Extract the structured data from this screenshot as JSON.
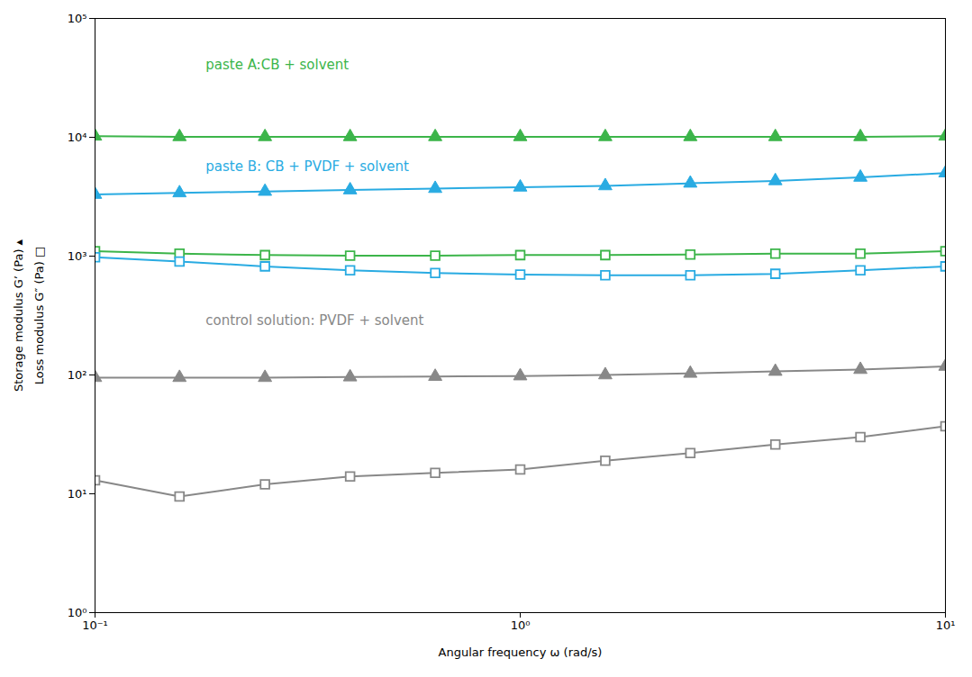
{
  "chart_data": {
    "type": "line",
    "xlabel": "Angular frequency ω (rad/s)",
    "ylabel": [
      "Storage modulus G’ (Pa) ▴",
      "Loss modulus G″ (Pa) □"
    ],
    "log": true,
    "grid": false,
    "xlim": [
      0.1,
      10
    ],
    "ylim": [
      1,
      100000
    ],
    "xticks": [
      {
        "value": 0.1,
        "label": "10⁻¹"
      },
      {
        "value": 1,
        "label": "10⁰"
      },
      {
        "value": 10,
        "label": "10¹"
      }
    ],
    "yticks": [
      {
        "value": 1,
        "label": "10⁰"
      },
      {
        "value": 10,
        "label": "10¹"
      },
      {
        "value": 100,
        "label": "10²"
      },
      {
        "value": 1000,
        "label": "10³"
      },
      {
        "value": 10000,
        "label": "10⁴"
      },
      {
        "value": 100000,
        "label": "10⁵"
      }
    ],
    "x": [
      0.1,
      0.158,
      0.251,
      0.398,
      0.631,
      1.0,
      1.585,
      2.512,
      3.981,
      6.31,
      10.0
    ],
    "series": [
      {
        "color": "#3cb54a",
        "marker": "triangle",
        "values": [
          10200,
          10100,
          10100,
          10100,
          10100,
          10100,
          10100,
          10100,
          10100,
          10100,
          10200
        ]
      },
      {
        "color": "#3cb54a",
        "marker": "open_square",
        "values": [
          1100,
          1050,
          1020,
          1010,
          1010,
          1020,
          1020,
          1030,
          1050,
          1050,
          1100
        ]
      },
      {
        "color": "#29abe2",
        "marker": "triangle",
        "values": [
          3300,
          3400,
          3500,
          3600,
          3700,
          3800,
          3900,
          4100,
          4300,
          4600,
          5000
        ]
      },
      {
        "color": "#29abe2",
        "marker": "open_square",
        "values": [
          980,
          900,
          820,
          760,
          720,
          700,
          690,
          690,
          710,
          760,
          820
        ]
      },
      {
        "color": "#888888",
        "marker": "triangle",
        "values": [
          95,
          95,
          95,
          96,
          97,
          98,
          100,
          103,
          107,
          111,
          118
        ]
      },
      {
        "color": "#888888",
        "marker": "open_square",
        "values": [
          13,
          9.5,
          12,
          14,
          15,
          16,
          19,
          22,
          26,
          30,
          37
        ]
      }
    ],
    "annotations": [
      {
        "text": "paste A:CB + solvent",
        "color": "#3cb54a"
      },
      {
        "text": "paste B: CB + PVDF + solvent",
        "color": "#29abe2"
      },
      {
        "text": "control solution: PVDF + solvent",
        "color": "#888888"
      }
    ]
  }
}
